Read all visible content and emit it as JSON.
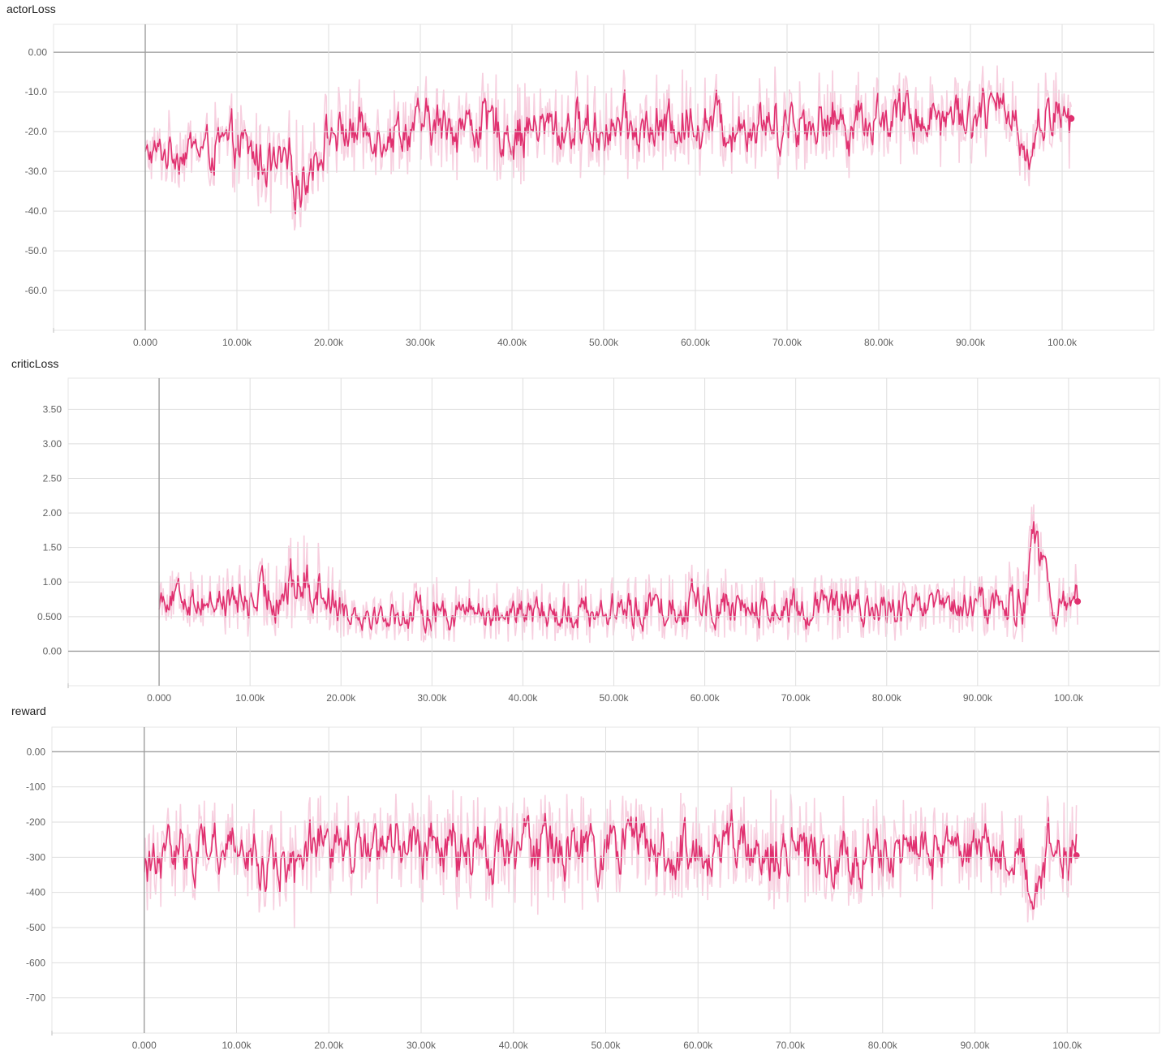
{
  "chart_data": [
    {
      "type": "line",
      "title": "actorLoss",
      "xlabel": "",
      "ylabel": "",
      "xlim": [
        -10000,
        110000
      ],
      "ylim": [
        -70,
        7
      ],
      "grid": true,
      "xticks": [
        0,
        10000,
        20000,
        30000,
        40000,
        50000,
        60000,
        70000,
        80000,
        90000,
        100000
      ],
      "xtick_labels": [
        "0.000",
        "10.00k",
        "20.00k",
        "30.00k",
        "40.00k",
        "50.00k",
        "60.00k",
        "70.00k",
        "80.00k",
        "90.00k",
        "100.0k"
      ],
      "yticks": [
        0,
        -10,
        -20,
        -30,
        -40,
        -50,
        -60
      ],
      "ytick_labels": [
        "0.00",
        "-10.0",
        "-20.0",
        "-30.0",
        "-40.0",
        "-50.0",
        "-60.0"
      ],
      "color": "#e0306f",
      "raw_color": "#f7cfdf",
      "series": [
        {
          "x": [
            0,
            5000,
            10000,
            15000,
            17000,
            20000,
            25000,
            30000,
            35000,
            40000,
            45000,
            50000,
            55000,
            60000,
            65000,
            70000,
            75000,
            80000,
            85000,
            90000,
            95000,
            96000,
            98000,
            101000
          ],
          "smoothed": [
            -26,
            -24,
            -24,
            -30,
            -32,
            -20,
            -20,
            -19,
            -18,
            -20,
            -19,
            -19,
            -20,
            -17,
            -18,
            -17,
            -18,
            -16,
            -16,
            -15,
            -15,
            -28,
            -15,
            -17
          ],
          "raw_spread": [
            8,
            10,
            12,
            14,
            14,
            11,
            11,
            12,
            13,
            13,
            13,
            13,
            13,
            13,
            13,
            13,
            13,
            12,
            12,
            12,
            12,
            10,
            11,
            11
          ]
        }
      ],
      "last_value": -16.7
    },
    {
      "type": "line",
      "title": "criticLoss",
      "xlabel": "",
      "ylabel": "",
      "xlim": [
        -10000,
        110000
      ],
      "ylim": [
        -0.5,
        3.95
      ],
      "grid": true,
      "xticks": [
        0,
        10000,
        20000,
        30000,
        40000,
        50000,
        60000,
        70000,
        80000,
        90000,
        100000
      ],
      "xtick_labels": [
        "0.000",
        "10.00k",
        "20.00k",
        "30.00k",
        "40.00k",
        "50.00k",
        "60.00k",
        "70.00k",
        "80.00k",
        "90.00k",
        "100.0k"
      ],
      "yticks": [
        0,
        0.5,
        1.0,
        1.5,
        2.0,
        2.5,
        3.0,
        3.5
      ],
      "ytick_labels": [
        "0.00",
        "0.500",
        "1.00",
        "1.50",
        "2.00",
        "2.50",
        "3.00",
        "3.50"
      ],
      "color": "#e0306f",
      "raw_color": "#f7cfdf",
      "series": [
        {
          "x": [
            0,
            5000,
            10000,
            15000,
            17000,
            20000,
            25000,
            30000,
            35000,
            40000,
            45000,
            50000,
            55000,
            60000,
            65000,
            70000,
            75000,
            80000,
            85000,
            90000,
            95000,
            96000,
            98000,
            101000
          ],
          "smoothed": [
            0.7,
            0.6,
            0.55,
            0.75,
            0.8,
            0.5,
            0.4,
            0.45,
            0.45,
            0.4,
            0.45,
            0.45,
            0.5,
            0.55,
            0.45,
            0.45,
            0.5,
            0.45,
            0.45,
            0.5,
            0.55,
            1.5,
            0.45,
            0.7
          ],
          "raw_spread": [
            0.45,
            0.55,
            0.7,
            0.9,
            0.9,
            0.55,
            0.45,
            0.6,
            0.6,
            0.5,
            0.6,
            0.6,
            0.6,
            0.75,
            0.6,
            0.6,
            0.6,
            0.55,
            0.55,
            0.6,
            0.8,
            0.9,
            0.5,
            0.6
          ]
        }
      ],
      "last_value": 0.72
    },
    {
      "type": "line",
      "title": "reward",
      "xlabel": "",
      "ylabel": "",
      "xlim": [
        -10000,
        110000
      ],
      "ylim": [
        -800,
        70
      ],
      "grid": true,
      "xticks": [
        0,
        10000,
        20000,
        30000,
        40000,
        50000,
        60000,
        70000,
        80000,
        90000,
        100000
      ],
      "xtick_labels": [
        "0.000",
        "10.00k",
        "20.00k",
        "30.00k",
        "40.00k",
        "50.00k",
        "60.00k",
        "70.00k",
        "80.00k",
        "90.00k",
        "100.0k"
      ],
      "yticks": [
        0,
        -100,
        -200,
        -300,
        -400,
        -500,
        -600,
        -700
      ],
      "ytick_labels": [
        "0.00",
        "-100",
        "-200",
        "-300",
        "-400",
        "-500",
        "-600",
        "-700"
      ],
      "color": "#e0306f",
      "raw_color": "#f7cfdf",
      "series": [
        {
          "x": [
            0,
            5000,
            10000,
            15000,
            17000,
            20000,
            25000,
            30000,
            35000,
            40000,
            45000,
            50000,
            55000,
            60000,
            65000,
            70000,
            75000,
            80000,
            85000,
            90000,
            95000,
            96000,
            98000,
            101000
          ],
          "smoothed": [
            -330,
            -260,
            -270,
            -320,
            -330,
            -270,
            -270,
            -270,
            -270,
            -280,
            -280,
            -280,
            -290,
            -300,
            -270,
            -290,
            -300,
            -290,
            -280,
            -270,
            -270,
            -450,
            -280,
            -295
          ],
          "raw_spread": [
            130,
            150,
            150,
            160,
            170,
            150,
            150,
            150,
            160,
            160,
            160,
            160,
            160,
            160,
            160,
            160,
            160,
            150,
            150,
            150,
            160,
            140,
            150,
            150
          ]
        }
      ],
      "last_value": -295
    }
  ]
}
